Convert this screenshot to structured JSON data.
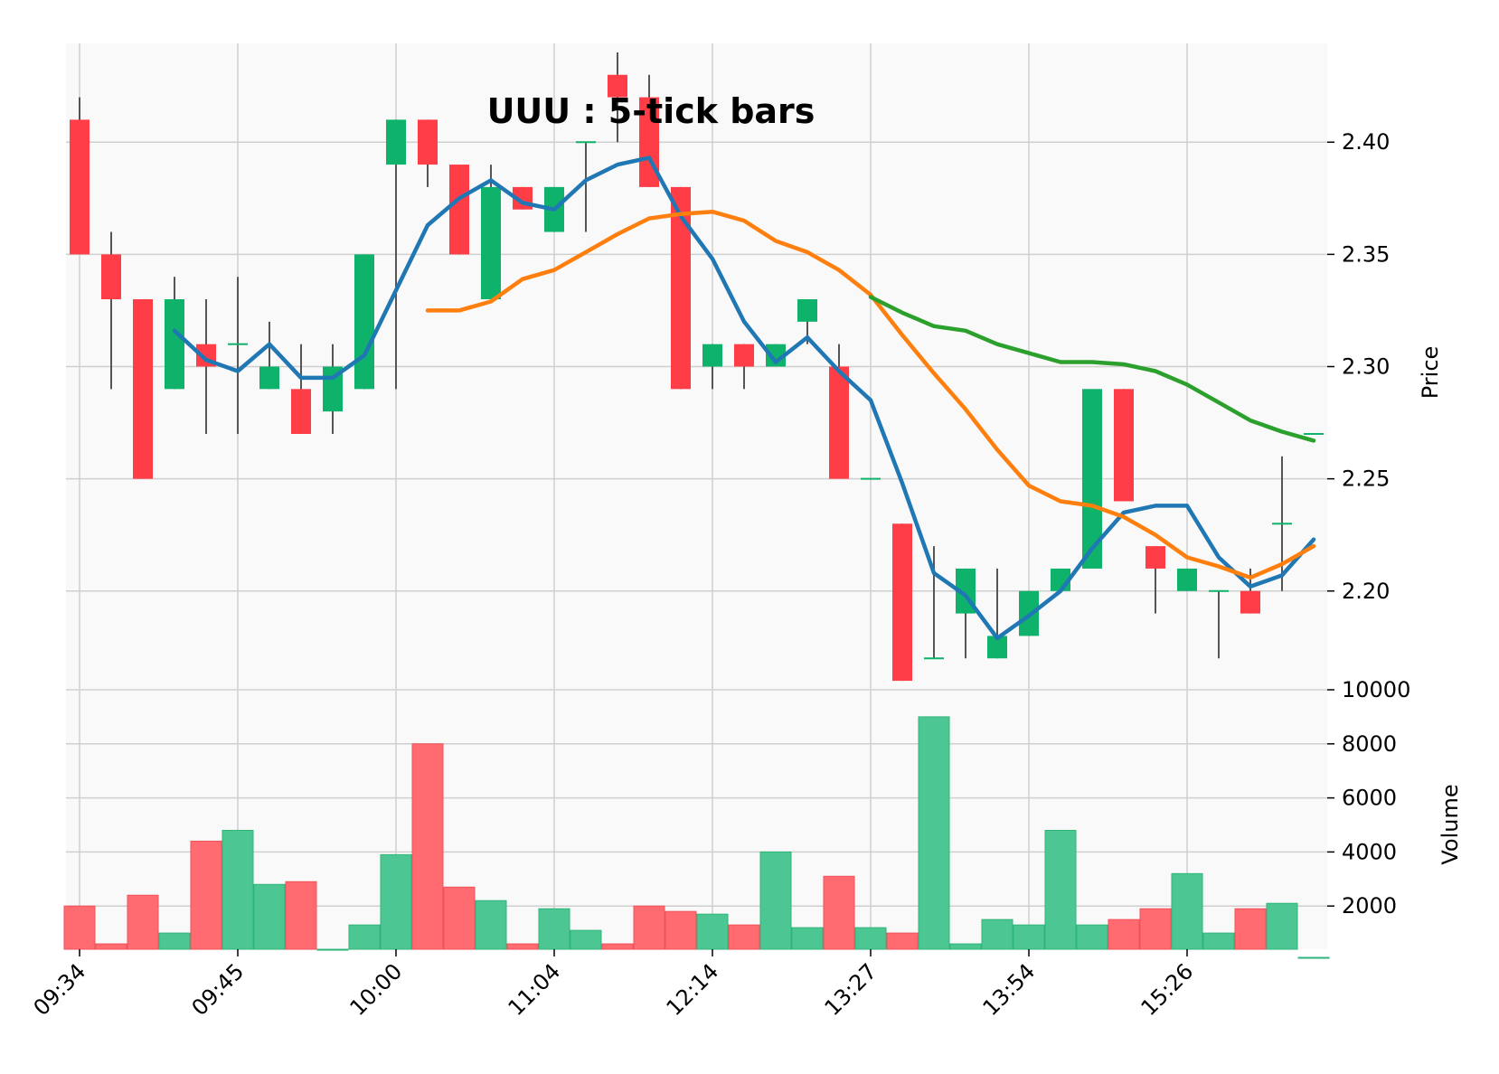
{
  "chart_data": {
    "type": "candlestick",
    "title": "UUU : 5-tick bars",
    "ylabel_price": "Price",
    "ylabel_volume": "Volume",
    "price_ylim": [
      2.156,
      2.444
    ],
    "price_ticks": [
      "2.20",
      "2.25",
      "2.30",
      "2.35",
      "2.40"
    ],
    "volume_ylim": [
      0,
      10000
    ],
    "volume_ticks": [
      "2000",
      "4000",
      "6000",
      "8000",
      "10000"
    ],
    "x_ticks": [
      {
        "i": 0,
        "label": "09:34"
      },
      {
        "i": 5,
        "label": "09:45"
      },
      {
        "i": 10,
        "label": "10:00"
      },
      {
        "i": 15,
        "label": "11:04"
      },
      {
        "i": 20,
        "label": "12:14"
      },
      {
        "i": 25,
        "label": "13:27"
      },
      {
        "i": 30,
        "label": "13:54"
      },
      {
        "i": 35,
        "label": "15:26"
      }
    ],
    "colors": {
      "up": "#0eb26b",
      "down": "#ff3d47",
      "up_vol": "#4cc793",
      "down_vol": "#ff6b71",
      "wick": "#555555",
      "ma1": "#1f77b4",
      "ma2": "#ff7f0e",
      "ma3": "#2ca02c",
      "grid": "#cfcfcf",
      "panel_bg": "#f9f9f9"
    },
    "candles": [
      {
        "o": 2.41,
        "h": 2.42,
        "l": 2.35,
        "c": 2.35,
        "v": 2000
      },
      {
        "o": 2.35,
        "h": 2.36,
        "l": 2.29,
        "c": 2.33,
        "v": 600
      },
      {
        "o": 2.33,
        "h": 2.33,
        "l": 2.25,
        "c": 2.25,
        "v": 2400
      },
      {
        "o": 2.29,
        "h": 2.34,
        "l": 2.29,
        "c": 2.33,
        "v": 1000
      },
      {
        "o": 2.31,
        "h": 2.33,
        "l": 2.27,
        "c": 2.3,
        "v": 4400
      },
      {
        "o": 2.31,
        "h": 2.34,
        "l": 2.27,
        "c": 2.31,
        "v": 4800
      },
      {
        "o": 2.29,
        "h": 2.32,
        "l": 2.29,
        "c": 2.3,
        "v": 2800
      },
      {
        "o": 2.29,
        "h": 2.31,
        "l": 2.27,
        "c": 2.27,
        "v": 2900
      },
      {
        "o": 2.28,
        "h": 2.31,
        "l": 2.27,
        "c": 2.3,
        "v": 400
      },
      {
        "o": 2.29,
        "h": 2.35,
        "l": 2.29,
        "c": 2.35,
        "v": 1300
      },
      {
        "o": 2.39,
        "h": 2.41,
        "l": 2.29,
        "c": 2.41,
        "v": 3900
      },
      {
        "o": 2.41,
        "h": 2.41,
        "l": 2.38,
        "c": 2.39,
        "v": 8000
      },
      {
        "o": 2.39,
        "h": 2.39,
        "l": 2.35,
        "c": 2.35,
        "v": 2700
      },
      {
        "o": 2.33,
        "h": 2.39,
        "l": 2.33,
        "c": 2.38,
        "v": 2200
      },
      {
        "o": 2.38,
        "h": 2.38,
        "l": 2.37,
        "c": 2.37,
        "v": 600
      },
      {
        "o": 2.36,
        "h": 2.38,
        "l": 2.36,
        "c": 2.38,
        "v": 1900
      },
      {
        "o": 2.4,
        "h": 2.4,
        "l": 2.36,
        "c": 2.4,
        "v": 1100
      },
      {
        "o": 2.43,
        "h": 2.44,
        "l": 2.4,
        "c": 2.42,
        "v": 600
      },
      {
        "o": 2.42,
        "h": 2.43,
        "l": 2.38,
        "c": 2.38,
        "v": 2000
      },
      {
        "o": 2.38,
        "h": 2.38,
        "l": 2.29,
        "c": 2.29,
        "v": 1800
      },
      {
        "o": 2.3,
        "h": 2.31,
        "l": 2.29,
        "c": 2.31,
        "v": 1700
      },
      {
        "o": 2.31,
        "h": 2.31,
        "l": 2.29,
        "c": 2.3,
        "v": 1300
      },
      {
        "o": 2.3,
        "h": 2.31,
        "l": 2.3,
        "c": 2.31,
        "v": 4000
      },
      {
        "o": 2.32,
        "h": 2.33,
        "l": 2.31,
        "c": 2.33,
        "v": 1200
      },
      {
        "o": 2.3,
        "h": 2.31,
        "l": 2.25,
        "c": 2.25,
        "v": 3100
      },
      {
        "o": 2.25,
        "h": 2.25,
        "l": 2.25,
        "c": 2.25,
        "v": 1200
      },
      {
        "o": 2.23,
        "h": 2.23,
        "l": 2.16,
        "c": 2.16,
        "v": 1000
      },
      {
        "o": 2.17,
        "h": 2.22,
        "l": 2.17,
        "c": 2.17,
        "v": 9000
      },
      {
        "o": 2.19,
        "h": 2.21,
        "l": 2.17,
        "c": 2.21,
        "v": 600
      },
      {
        "o": 2.17,
        "h": 2.21,
        "l": 2.17,
        "c": 2.18,
        "v": 1500
      },
      {
        "o": 2.18,
        "h": 2.2,
        "l": 2.18,
        "c": 2.2,
        "v": 1300
      },
      {
        "o": 2.2,
        "h": 2.21,
        "l": 2.2,
        "c": 2.21,
        "v": 4800
      },
      {
        "o": 2.21,
        "h": 2.29,
        "l": 2.21,
        "c": 2.29,
        "v": 1300
      },
      {
        "o": 2.29,
        "h": 2.29,
        "l": 2.24,
        "c": 2.24,
        "v": 1500
      },
      {
        "o": 2.22,
        "h": 2.22,
        "l": 2.19,
        "c": 2.21,
        "v": 1900
      },
      {
        "o": 2.2,
        "h": 2.21,
        "l": 2.2,
        "c": 2.21,
        "v": 3200
      },
      {
        "o": 2.2,
        "h": 2.2,
        "l": 2.17,
        "c": 2.2,
        "v": 1000
      },
      {
        "o": 2.2,
        "h": 2.21,
        "l": 2.19,
        "c": 2.19,
        "v": 1900
      },
      {
        "o": 2.23,
        "h": 2.26,
        "l": 2.2,
        "c": 2.23,
        "v": 2100
      },
      {
        "o": 2.27,
        "h": 2.27,
        "l": 2.27,
        "c": 2.27,
        "v": 100
      }
    ],
    "moving_averages": [
      {
        "color": "#1f77b4",
        "start": 3,
        "values": [
          2.316,
          2.303,
          2.298,
          2.31,
          2.295,
          2.295,
          2.305,
          2.334,
          2.363,
          2.375,
          2.383,
          2.373,
          2.37,
          2.383,
          2.39,
          2.393,
          2.367,
          2.348,
          2.32,
          2.302,
          2.313,
          2.298,
          2.285,
          2.248,
          2.208,
          2.198,
          2.179,
          2.189,
          2.2,
          2.219,
          2.235,
          2.238,
          2.238,
          2.215,
          2.202,
          2.207,
          2.223
        ]
      },
      {
        "color": "#ff7f0e",
        "start": 11,
        "values": [
          2.325,
          2.325,
          2.329,
          2.339,
          2.343,
          2.351,
          2.359,
          2.366,
          2.368,
          2.369,
          2.365,
          2.356,
          2.351,
          2.343,
          2.332,
          2.314,
          2.297,
          2.281,
          2.263,
          2.247,
          2.24,
          2.238,
          2.233,
          2.225,
          2.215,
          2.211,
          2.206,
          2.212,
          2.22
        ]
      },
      {
        "color": "#2ca02c",
        "start": 25,
        "values": [
          2.331,
          2.324,
          2.318,
          2.316,
          2.31,
          2.306,
          2.302,
          2.302,
          2.301,
          2.298,
          2.292,
          2.284,
          2.276,
          2.271,
          2.267
        ]
      }
    ]
  }
}
